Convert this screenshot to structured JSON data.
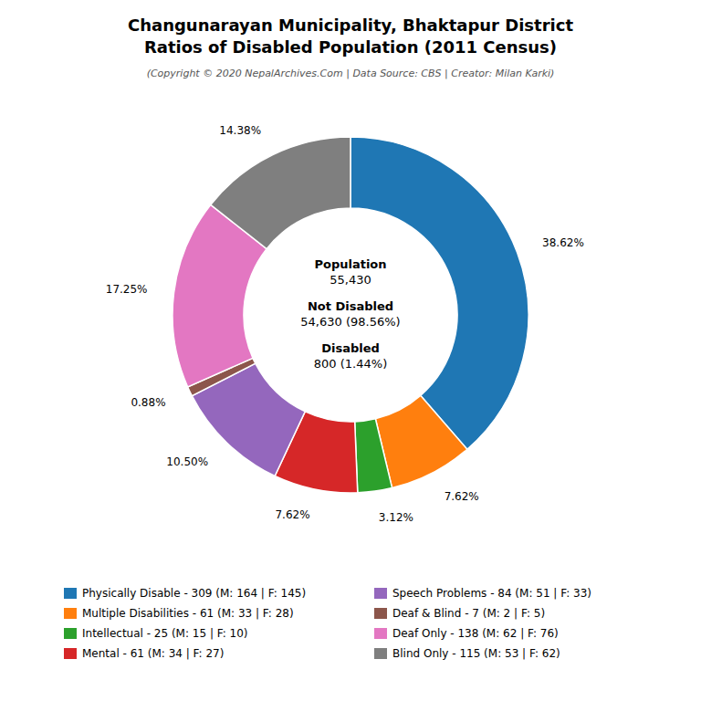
{
  "chart_data": {
    "type": "donut",
    "title": [
      "Changunarayan Municipality, Bhaktapur District",
      "Ratios of Disabled Population (2011 Census)"
    ],
    "subtitle": "(Copyright © 2020 NepalArchives.Com | Data Source: CBS | Creator: Milan Karki)",
    "categories": [
      "Physically Disable - 309 (M: 164 | F: 145)",
      "Multiple Disabilities - 61 (M: 33 | F: 28)",
      "Intellectual - 25 (M: 15 | F: 10)",
      "Mental - 61 (M: 34 | F: 27)",
      "Speech Problems - 84 (M: 51 | F: 33)",
      "Deaf & Blind - 7 (M: 2 | F: 5)",
      "Deaf Only - 138 (M: 62 | F: 76)",
      "Blind Only - 115 (M: 53 | F: 62)"
    ],
    "values": [
      38.62,
      7.62,
      3.12,
      7.62,
      10.5,
      0.88,
      17.25,
      14.38
    ],
    "value_labels": [
      "38.62%",
      "7.62%",
      "3.12%",
      "7.62%",
      "10.50%",
      "0.88%",
      "17.25%",
      "14.38%"
    ],
    "data_labels": true,
    "legend": "bottom",
    "annotations": [
      "Population",
      "55,430",
      "Not Disabled",
      "54,630 (98.56%)",
      "Disabled",
      "800 (1.44%)"
    ]
  }
}
